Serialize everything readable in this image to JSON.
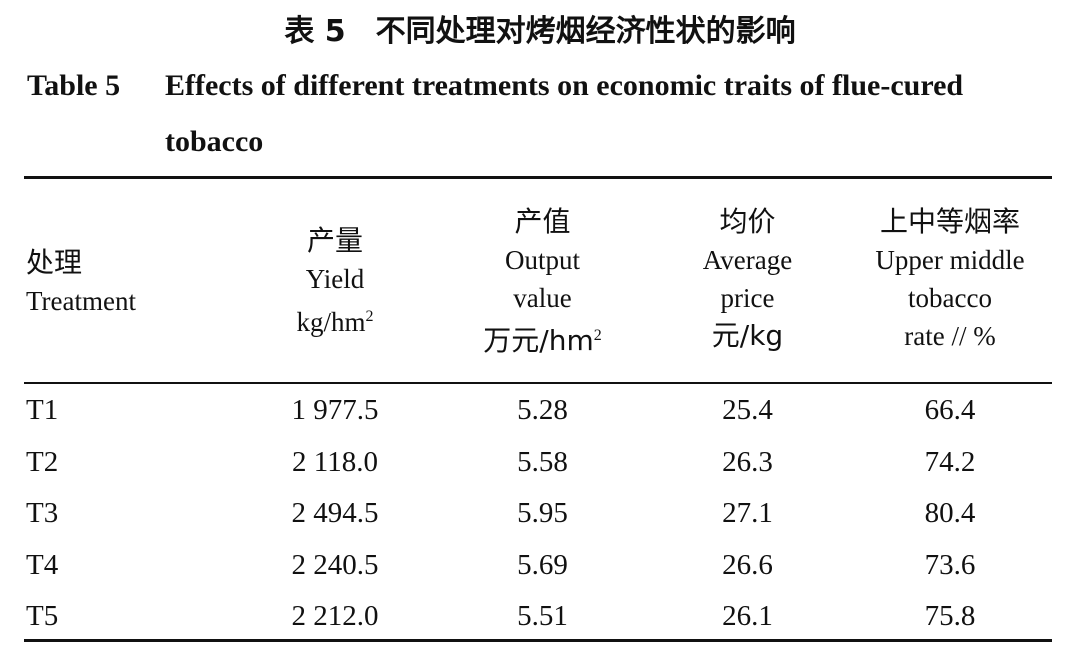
{
  "title": {
    "cn_number": "表 5",
    "cn_text": "不同处理对烤烟经济性状的影响",
    "en_number": "Table 5",
    "en_text": "Effects of different treatments on economic traits of flue-cured tobacco"
  },
  "headers": [
    {
      "cn": "处理",
      "en_lines": [
        "Treatment"
      ],
      "unit_base": "",
      "unit_sup": ""
    },
    {
      "cn": "产量",
      "en_lines": [
        "Yield"
      ],
      "unit_base": "kg/hm",
      "unit_sup": "2"
    },
    {
      "cn": "产值",
      "en_lines": [
        "Output",
        "value"
      ],
      "unit_base": "万元/hm",
      "unit_sup": "2"
    },
    {
      "cn": "均价",
      "en_lines": [
        "Average",
        "price"
      ],
      "unit_base": "元/kg",
      "unit_sup": ""
    },
    {
      "cn": "上中等烟率",
      "en_lines": [
        "Upper middle",
        "tobacco",
        "rate // %"
      ],
      "unit_base": "",
      "unit_sup": ""
    }
  ],
  "rows": [
    [
      "T1",
      "1 977.5",
      "5.28",
      "25.4",
      "66.4"
    ],
    [
      "T2",
      "2 118.0",
      "5.58",
      "26.3",
      "74.2"
    ],
    [
      "T3",
      "2 494.5",
      "5.95",
      "27.1",
      "80.4"
    ],
    [
      "T4",
      "2 240.5",
      "5.69",
      "26.6",
      "73.6"
    ],
    [
      "T5",
      "2 212.0",
      "5.51",
      "26.1",
      "75.8"
    ]
  ]
}
